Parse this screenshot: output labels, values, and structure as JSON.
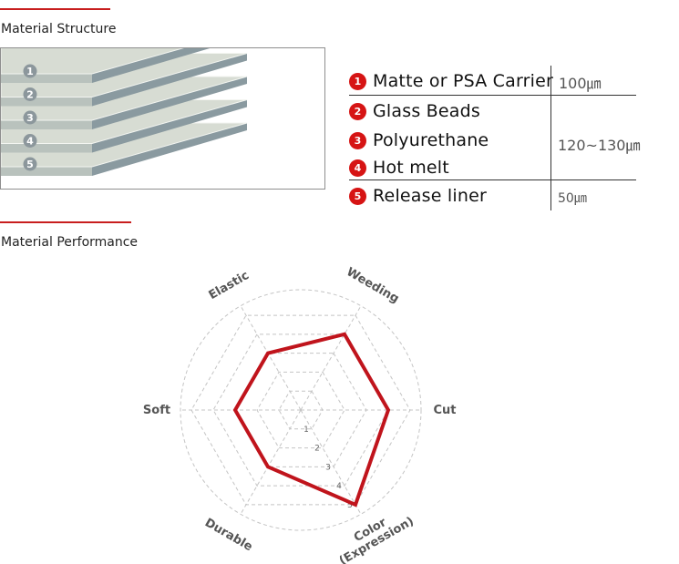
{
  "sections": {
    "structure_title": "Material Structure",
    "performance_title": "Material Performance"
  },
  "layers": [
    "1",
    "2",
    "3",
    "4",
    "5"
  ],
  "legend": {
    "items": [
      {
        "num": "1",
        "label": "Matte or PSA Carrier"
      },
      {
        "num": "2",
        "label": "Glass Beads"
      },
      {
        "num": "3",
        "label": "Polyurethane"
      },
      {
        "num": "4",
        "label": "Hot melt"
      },
      {
        "num": "5",
        "label": "Release liner"
      }
    ],
    "thickness": {
      "carrier": "100㎛",
      "middle": "120~130㎛",
      "liner": "50㎛"
    }
  },
  "colors": {
    "accent": "#d61414",
    "radar_line": "#c0141c",
    "layer_top": "#d7dcd3",
    "layer_side": "#8a9aa0"
  },
  "chart_data": {
    "type": "radar",
    "axes": [
      "Weeding",
      "Cut",
      "Color\n(Expression)",
      "Durable",
      "Soft",
      "Elastic"
    ],
    "scale_labels": [
      "1",
      "2",
      "3",
      "4",
      "5"
    ],
    "range": [
      0,
      5
    ],
    "values": [
      4,
      4,
      5,
      3,
      3,
      3
    ]
  }
}
